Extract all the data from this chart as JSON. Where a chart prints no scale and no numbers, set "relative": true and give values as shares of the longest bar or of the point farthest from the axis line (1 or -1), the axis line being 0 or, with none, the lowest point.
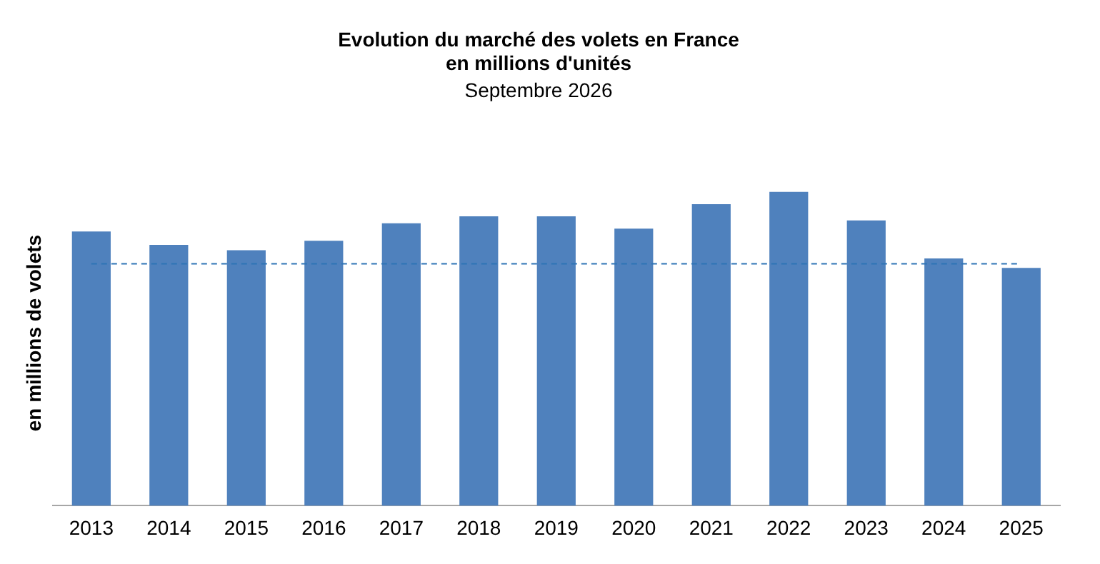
{
  "chart_data": {
    "type": "bar",
    "title": "Evolution du marché des volets en France en millions d'unités",
    "subtitle": "Septembre 2026",
    "ylabel": "en millions de volets",
    "relative": true,
    "categories": [
      "2013",
      "2014",
      "2015",
      "2016",
      "2017",
      "2018",
      "2019",
      "2020",
      "2021",
      "2022",
      "2023",
      "2024",
      "2025"
    ],
    "series": [
      {
        "color": "#4f81bd",
        "values": [
          0.874,
          0.831,
          0.814,
          0.844,
          0.9,
          0.922,
          0.922,
          0.883,
          0.961,
          1,
          0.909,
          0.788,
          0.758
        ]
      }
    ],
    "ref_lines": [
      {
        "axis": "y",
        "value": 0.771,
        "color": "#2e75b6",
        "line_style": "dashed"
      }
    ],
    "grid": false,
    "legend": false
  }
}
